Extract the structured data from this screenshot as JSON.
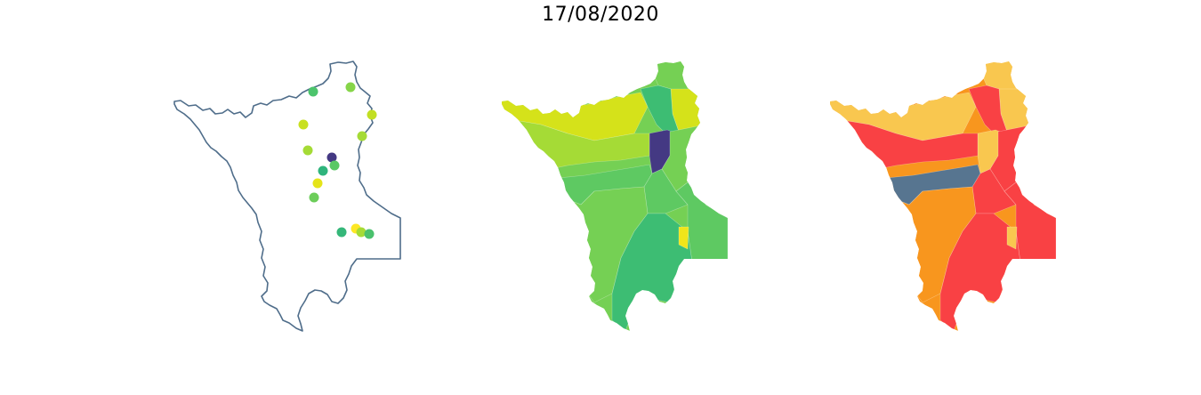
{
  "title": "17/08/2020",
  "panels": [
    {
      "id": "points-map",
      "points": [
        {
          "color": "#4cc46c"
        },
        {
          "color": "#86d549"
        },
        {
          "color": "#c2df23"
        },
        {
          "color": "#c8e020"
        },
        {
          "color": "#a5db36"
        },
        {
          "color": "#a5db36"
        },
        {
          "color": "#443983"
        },
        {
          "color": "#59c864"
        },
        {
          "color": "#2fb47c"
        },
        {
          "color": "#e5e419"
        },
        {
          "color": "#6ccd5a"
        },
        {
          "color": "#35b779"
        },
        {
          "color": "#fde725"
        },
        {
          "color": "#a5db36"
        },
        {
          "color": "#4ac16d"
        }
      ]
    },
    {
      "id": "choropleth-map",
      "colors": {
        "dark": "#443983",
        "teal": "#3dbd73",
        "green": "#5ec962",
        "lightgreen": "#75d054",
        "lime": "#a5db36",
        "yellowgreen": "#d5e21a",
        "yellow": "#f0e51a"
      }
    },
    {
      "id": "risk-map",
      "colors": {
        "red": "#f94144",
        "orange": "#f8961e",
        "yellow": "#f9c74f",
        "slate": "#577590"
      }
    }
  ]
}
